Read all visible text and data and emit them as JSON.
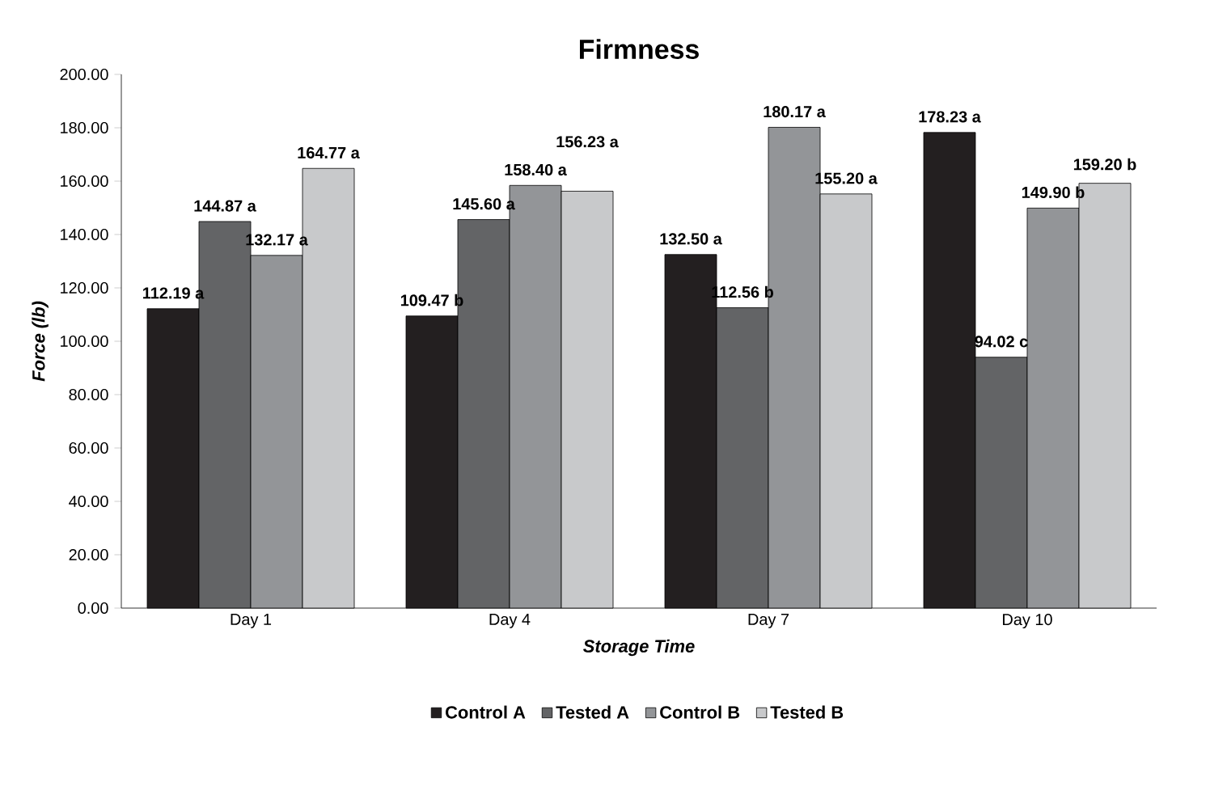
{
  "chart_data": {
    "type": "bar",
    "title": "Firmness",
    "xlabel": "Storage Time",
    "ylabel": "Force (lb)",
    "categories": [
      "Day 1",
      "Day 4",
      "Day 7",
      "Day 10"
    ],
    "series": [
      {
        "name": "Control A",
        "color": "#231f20",
        "values": [
          112.19,
          109.47,
          132.5,
          178.23
        ],
        "value_labels": [
          "112.19 a",
          "109.47 b",
          "132.50 a",
          "178.23 a"
        ]
      },
      {
        "name": "Tested A",
        "color": "#636466",
        "values": [
          144.87,
          145.6,
          112.56,
          94.02
        ],
        "value_labels": [
          "144.87 a",
          "145.60 a",
          "112.56 b",
          "94.02 c"
        ]
      },
      {
        "name": "Control B",
        "color": "#939598",
        "values": [
          132.17,
          158.4,
          180.17,
          149.9
        ],
        "value_labels": [
          "132.17 a",
          "158.40 a",
          "180.17 a",
          "149.90 b"
        ]
      },
      {
        "name": "Tested B",
        "color": "#c8c9cb",
        "values": [
          164.77,
          156.23,
          155.2,
          159.2
        ],
        "value_labels": [
          "164.77 a",
          "156.23 a",
          "155.20 a",
          "159.20 b"
        ]
      }
    ],
    "ylim": [
      0,
      200
    ],
    "yticks": [
      {
        "value": 0,
        "label": "0.00"
      },
      {
        "value": 20,
        "label": "20.00"
      },
      {
        "value": 40,
        "label": "40.00"
      },
      {
        "value": 60,
        "label": "60.00"
      },
      {
        "value": 80,
        "label": "80.00"
      },
      {
        "value": 100,
        "label": "100.00"
      },
      {
        "value": 120,
        "label": "120.00"
      },
      {
        "value": 140,
        "label": "140.00"
      },
      {
        "value": 160,
        "label": "160.00"
      },
      {
        "value": 180,
        "label": "180.00"
      },
      {
        "value": 200,
        "label": "200.00"
      }
    ],
    "legend": "bottom"
  }
}
